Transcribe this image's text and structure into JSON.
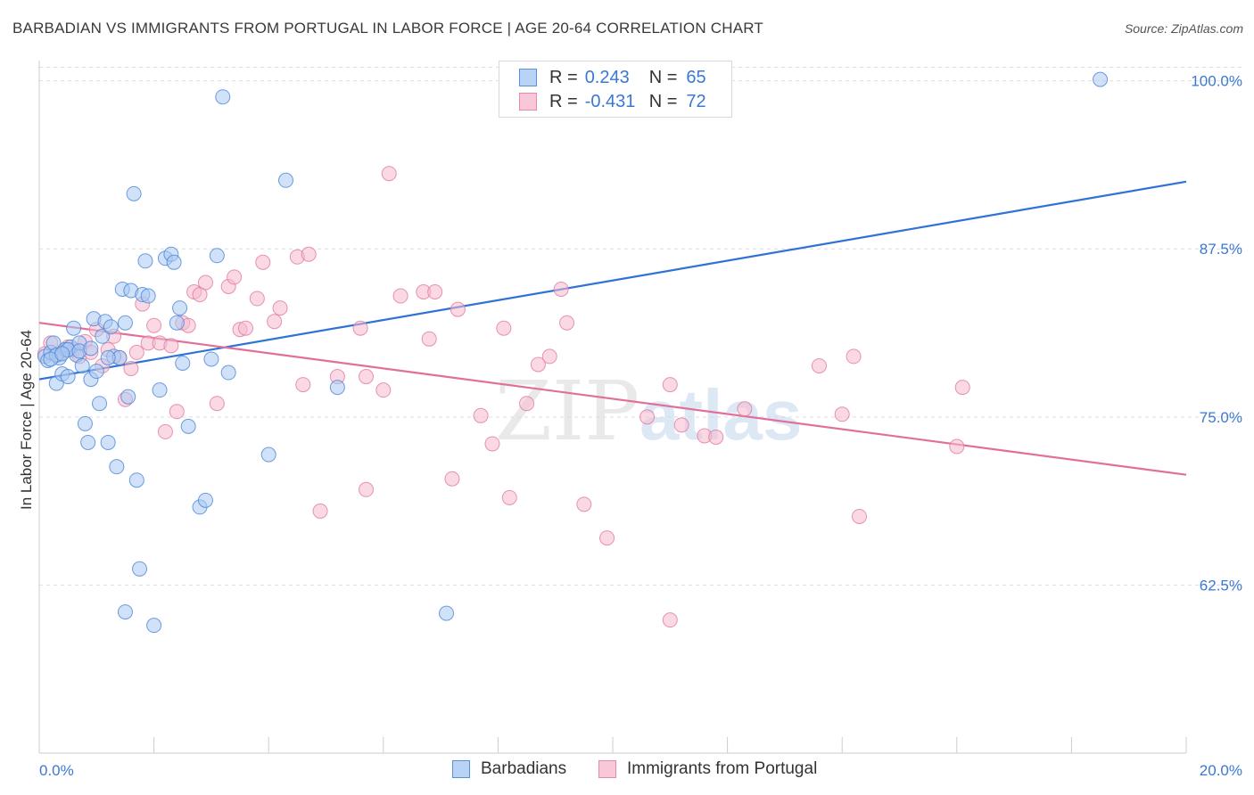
{
  "header": {
    "title": "BARBADIAN VS IMMIGRANTS FROM PORTUGAL IN LABOR FORCE | AGE 20-64 CORRELATION CHART",
    "source": "Source: ZipAtlas.com"
  },
  "watermark": {
    "part1": "ZIP",
    "part2": "atlas"
  },
  "legend": {
    "rows": [
      {
        "r_label": "R =",
        "r_value": "0.243",
        "n_label": "N =",
        "n_value": "65"
      },
      {
        "r_label": "R =",
        "r_value": "-0.431",
        "n_label": "N =",
        "n_value": "72"
      }
    ]
  },
  "bottom_legend": {
    "items": [
      "Barbadians",
      "Immigrants from Portugal"
    ]
  },
  "colors": {
    "blue_fill": "#a9c8f3",
    "blue_stroke": "#4a86d8",
    "blue_line": "#2f72d6",
    "pink_fill": "#f6b9cd",
    "pink_stroke": "#e07a9f",
    "pink_line": "#e0709a",
    "tick_text": "#3a78d4",
    "grid": "#dddddd"
  },
  "chart_data": {
    "type": "scatter",
    "title": "BARBADIAN VS IMMIGRANTS FROM PORTUGAL IN LABOR FORCE | AGE 20-64 CORRELATION CHART",
    "xlabel": "",
    "ylabel": "In Labor Force | Age 20-64",
    "xlim": [
      0,
      20
    ],
    "ylim": [
      50,
      101.5
    ],
    "x_tick_labels": [
      "0.0%",
      "20.0%"
    ],
    "y_ticks": [
      62.5,
      75.0,
      87.5,
      100.0
    ],
    "y_tick_labels": [
      "62.5%",
      "75.0%",
      "87.5%",
      "100.0%"
    ],
    "grid": true,
    "legend_position": "top-center",
    "series": [
      {
        "name": "Barbadians",
        "color": "#4a86d8",
        "trend": {
          "x0": 0,
          "y0": 77.8,
          "x1": 20,
          "y1": 92.5
        },
        "points": [
          [
            0.1,
            79.5
          ],
          [
            0.15,
            79.2
          ],
          [
            0.2,
            79.8
          ],
          [
            0.25,
            80.5
          ],
          [
            0.3,
            77.5
          ],
          [
            0.35,
            79.4
          ],
          [
            0.4,
            78.2
          ],
          [
            0.45,
            80.0
          ],
          [
            0.5,
            78.0
          ],
          [
            0.55,
            80.2
          ],
          [
            0.6,
            81.6
          ],
          [
            0.65,
            79.6
          ],
          [
            0.7,
            80.5
          ],
          [
            0.75,
            78.8
          ],
          [
            0.8,
            74.5
          ],
          [
            0.85,
            73.1
          ],
          [
            0.9,
            77.8
          ],
          [
            0.95,
            82.3
          ],
          [
            1.0,
            78.4
          ],
          [
            1.05,
            76.0
          ],
          [
            1.1,
            81.0
          ],
          [
            1.15,
            82.1
          ],
          [
            1.2,
            73.1
          ],
          [
            1.25,
            81.7
          ],
          [
            1.3,
            79.5
          ],
          [
            1.35,
            71.3
          ],
          [
            1.4,
            79.4
          ],
          [
            1.45,
            84.5
          ],
          [
            1.5,
            82.0
          ],
          [
            1.55,
            76.5
          ],
          [
            1.6,
            84.4
          ],
          [
            1.65,
            91.6
          ],
          [
            1.7,
            70.3
          ],
          [
            1.75,
            63.7
          ],
          [
            1.8,
            84.1
          ],
          [
            1.85,
            86.6
          ],
          [
            1.9,
            84.0
          ],
          [
            1.5,
            60.5
          ],
          [
            2.0,
            59.5
          ],
          [
            2.1,
            77.0
          ],
          [
            2.2,
            86.8
          ],
          [
            2.3,
            87.1
          ],
          [
            2.35,
            86.5
          ],
          [
            2.4,
            82.0
          ],
          [
            2.45,
            83.1
          ],
          [
            2.5,
            79.0
          ],
          [
            2.6,
            74.3
          ],
          [
            2.8,
            68.3
          ],
          [
            2.9,
            68.8
          ],
          [
            3.0,
            79.3
          ],
          [
            3.1,
            87.0
          ],
          [
            3.2,
            98.8
          ],
          [
            3.3,
            78.3
          ],
          [
            4.0,
            72.2
          ],
          [
            4.3,
            92.6
          ],
          [
            5.2,
            77.2
          ],
          [
            7.1,
            60.4
          ],
          [
            18.5,
            100.1
          ],
          [
            0.3,
            79.6
          ],
          [
            0.5,
            80.0
          ],
          [
            0.7,
            79.9
          ],
          [
            0.9,
            80.1
          ],
          [
            0.2,
            79.3
          ],
          [
            0.4,
            79.7
          ],
          [
            1.2,
            79.4
          ]
        ]
      },
      {
        "name": "Immigrants from Portugal",
        "color": "#e07a9f",
        "trend": {
          "x0": 0,
          "y0": 82.0,
          "x1": 20,
          "y1": 70.7
        },
        "points": [
          [
            0.1,
            79.7
          ],
          [
            0.2,
            80.5
          ],
          [
            0.3,
            79.6
          ],
          [
            0.4,
            79.8
          ],
          [
            0.5,
            80.2
          ],
          [
            0.6,
            80.0
          ],
          [
            0.7,
            79.5
          ],
          [
            0.8,
            80.6
          ],
          [
            0.9,
            79.8
          ],
          [
            1.0,
            81.5
          ],
          [
            1.1,
            78.8
          ],
          [
            1.2,
            80.0
          ],
          [
            1.3,
            81.0
          ],
          [
            1.4,
            79.4
          ],
          [
            1.5,
            76.3
          ],
          [
            1.6,
            78.6
          ],
          [
            1.7,
            79.8
          ],
          [
            1.8,
            83.4
          ],
          [
            1.9,
            80.5
          ],
          [
            2.0,
            81.8
          ],
          [
            2.1,
            80.5
          ],
          [
            2.2,
            73.9
          ],
          [
            2.3,
            80.3
          ],
          [
            2.4,
            75.4
          ],
          [
            2.5,
            82.0
          ],
          [
            2.6,
            81.8
          ],
          [
            2.7,
            84.3
          ],
          [
            2.8,
            84.1
          ],
          [
            2.9,
            85.0
          ],
          [
            3.1,
            76.0
          ],
          [
            3.3,
            84.7
          ],
          [
            3.4,
            85.4
          ],
          [
            3.5,
            81.5
          ],
          [
            3.6,
            81.6
          ],
          [
            3.8,
            83.8
          ],
          [
            3.9,
            86.5
          ],
          [
            4.1,
            82.1
          ],
          [
            4.2,
            83.1
          ],
          [
            4.5,
            86.9
          ],
          [
            4.7,
            87.1
          ],
          [
            4.6,
            77.4
          ],
          [
            4.9,
            68.0
          ],
          [
            5.2,
            78.0
          ],
          [
            5.6,
            81.6
          ],
          [
            5.7,
            78.0
          ],
          [
            5.7,
            69.6
          ],
          [
            6.0,
            77.0
          ],
          [
            6.1,
            93.1
          ],
          [
            6.3,
            84.0
          ],
          [
            6.7,
            84.3
          ],
          [
            6.8,
            80.8
          ],
          [
            6.9,
            84.3
          ],
          [
            7.2,
            70.4
          ],
          [
            7.3,
            83.0
          ],
          [
            7.7,
            75.1
          ],
          [
            7.9,
            73.0
          ],
          [
            8.1,
            81.6
          ],
          [
            8.2,
            69.0
          ],
          [
            8.5,
            76.0
          ],
          [
            8.7,
            78.9
          ],
          [
            8.9,
            79.5
          ],
          [
            9.1,
            84.5
          ],
          [
            9.2,
            82.0
          ],
          [
            9.5,
            68.5
          ],
          [
            9.9,
            66.0
          ],
          [
            10.6,
            75.0
          ],
          [
            11.0,
            59.9
          ],
          [
            11.0,
            77.4
          ],
          [
            11.2,
            74.4
          ],
          [
            11.6,
            73.6
          ],
          [
            11.8,
            73.5
          ],
          [
            12.3,
            75.6
          ]
        ]
      },
      {
        "name": "",
        "color": "#e07a9f",
        "points": [
          [
            13.6,
            78.8
          ],
          [
            14.0,
            75.2
          ],
          [
            14.2,
            79.5
          ],
          [
            14.3,
            67.6
          ],
          [
            16.1,
            77.2
          ],
          [
            16.0,
            72.8
          ]
        ]
      }
    ]
  }
}
